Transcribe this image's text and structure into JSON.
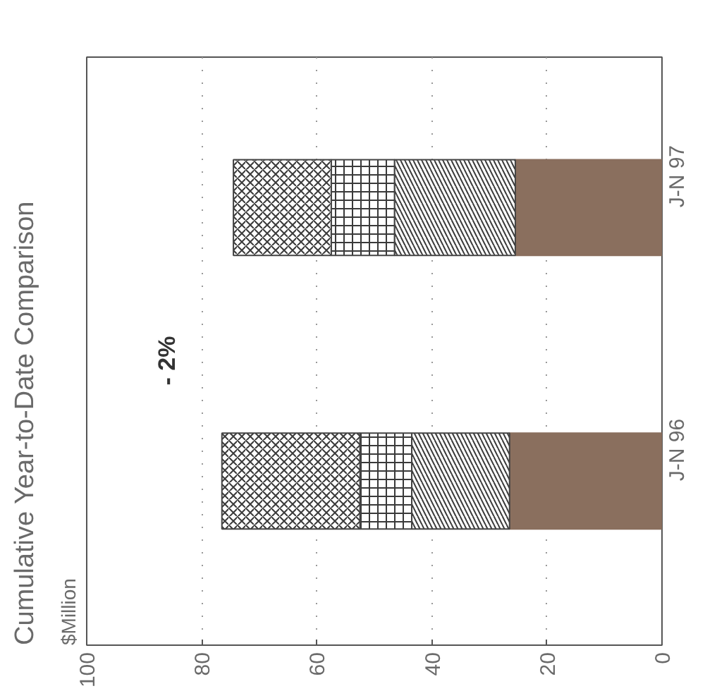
{
  "chart_data": {
    "type": "bar",
    "orientation": "horizontal",
    "stacked": true,
    "title": "Cumulative Year-to-Date Comparison",
    "subtitle": "$Million",
    "categories": [
      "J-N 97",
      "J-N 96"
    ],
    "series": [
      {
        "color": "#8a6f5e",
        "values": [
          25.5,
          26.5
        ]
      },
      {
        "color": "#3a3a3a",
        "values": [
          21,
          17
        ]
      },
      {
        "color": "#3a3a3a",
        "values": [
          11,
          9
        ]
      },
      {
        "color": "#3a3a3a",
        "values": [
          17,
          24
        ]
      }
    ],
    "xlim": [
      100,
      0
    ],
    "xticks": [
      0,
      20,
      40,
      60,
      80,
      100
    ],
    "grid": "x",
    "annotations": [
      "- 2%"
    ]
  }
}
